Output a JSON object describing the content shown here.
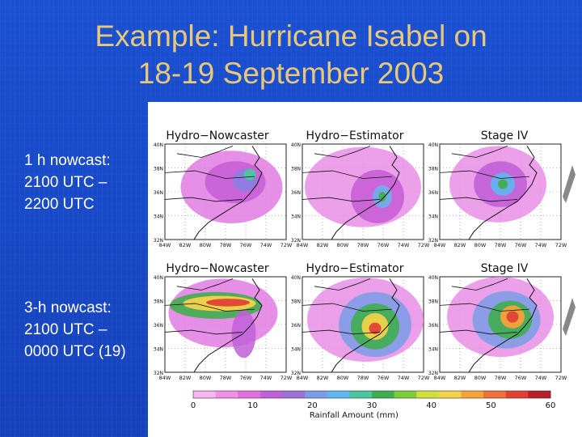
{
  "slide": {
    "title_line1": "Example:  Hurricane Isabel on",
    "title_line2": "18-19 September 2003",
    "captions": [
      {
        "line1": "1 h nowcast:",
        "line2": "2100 UTC –",
        "line3": "2200 UTC"
      },
      {
        "line1": "3-h nowcast:",
        "line2": "2100 UTC –",
        "line3": "0000 UTC (19)"
      }
    ]
  },
  "figure": {
    "panel_titles": [
      "Hydro−Nowcaster",
      "Hydro−Estimator",
      "Stage IV"
    ],
    "lat_labels": [
      "40N",
      "38N",
      "36N",
      "34N",
      "32N"
    ],
    "lon_labels": [
      "84W",
      "82W",
      "80W",
      "78W",
      "76W",
      "74W",
      "72W"
    ],
    "colorbar_ticks": [
      "0",
      "10",
      "20",
      "30",
      "40",
      "50",
      "60"
    ],
    "colorbar_label": "Rainfall Amount (mm)",
    "colorbar_colors": [
      "#f7b6f0",
      "#f090e8",
      "#e070e0",
      "#c060d8",
      "#9870d8",
      "#7a9ce6",
      "#5fb7ee",
      "#4cc6a0",
      "#3fae4e",
      "#7ccc3c",
      "#cfe03a",
      "#f2d24a",
      "#f5a23a",
      "#ef6e3a",
      "#e04034",
      "#b8202a"
    ]
  }
}
